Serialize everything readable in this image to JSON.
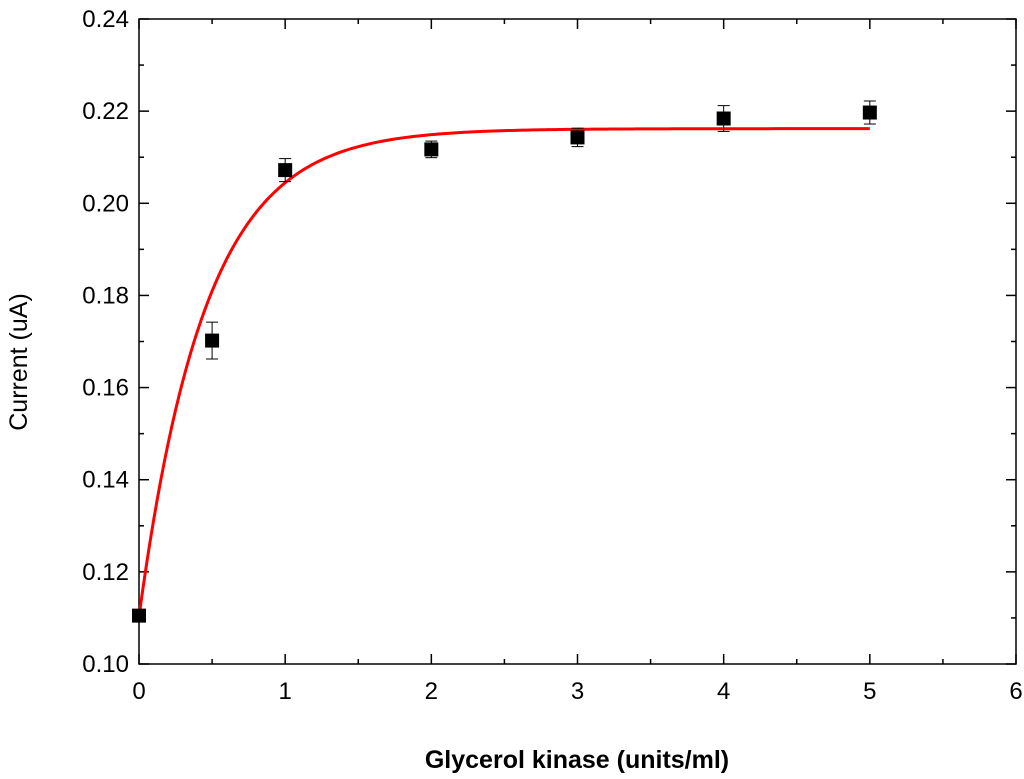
{
  "chart_data": {
    "type": "scatter",
    "xlabel": "Glycerol kinase (units/ml)",
    "ylabel": "Current (uA)",
    "xlim": [
      0,
      6
    ],
    "ylim": [
      0.1,
      0.24
    ],
    "x_ticks": [
      "0",
      "1",
      "2",
      "3",
      "4",
      "5",
      "6"
    ],
    "y_ticks": [
      "0.10",
      "0.12",
      "0.14",
      "0.16",
      "0.18",
      "0.20",
      "0.22",
      "0.24"
    ],
    "grid": false,
    "series": [
      {
        "type": "scatter",
        "marker": "square",
        "color": "#000000",
        "points": [
          {
            "x": 0,
            "y": 0.1105,
            "err": 0.001
          },
          {
            "x": 0.5,
            "y": 0.1702,
            "err": 0.004
          },
          {
            "x": 1,
            "y": 0.2072,
            "err": 0.0025
          },
          {
            "x": 2,
            "y": 0.2117,
            "err": 0.0018
          },
          {
            "x": 3,
            "y": 0.2143,
            "err": 0.002
          },
          {
            "x": 4,
            "y": 0.2184,
            "err": 0.0028
          },
          {
            "x": 5,
            "y": 0.2197,
            "err": 0.0025
          }
        ]
      },
      {
        "type": "line",
        "color": "#ff0000",
        "fit": {
          "model": "exponential",
          "y0": 0.1103,
          "plateau": 0.2162,
          "k": 2.2
        },
        "x_range": [
          0,
          5
        ]
      }
    ]
  }
}
